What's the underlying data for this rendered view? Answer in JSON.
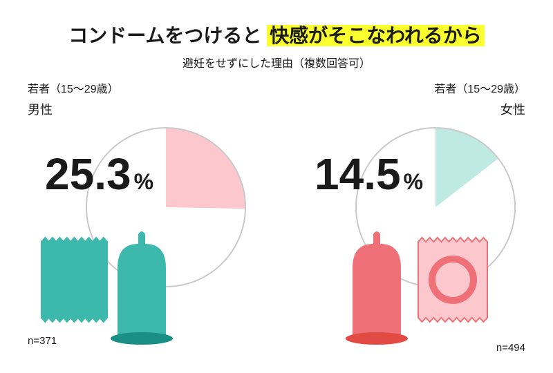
{
  "title_prefix": "コンドームをつけると",
  "title_highlight": "快感がそこなわれるから",
  "subtitle": "避妊をせずにした理由（複数回答可）",
  "left": {
    "group": "若者（15～29歳）",
    "gender": "男性",
    "percent_num": "25.3",
    "percent_sym": "%",
    "n_label": "n=371",
    "chart": {
      "type": "pie",
      "slice_percent": 25.3,
      "slice_color": "#fcc7cd",
      "ring_color": "#c9c9c9",
      "background": "#ffffff"
    },
    "icon_colors": {
      "packet_fill": "#3cb8ad",
      "packet_stroke": "#3cb8ad",
      "condom_fill": "#3cb8ad",
      "condom_base": "#1a8f86"
    }
  },
  "right": {
    "group": "若者（15～29歳）",
    "gender": "女性",
    "percent_num": "14.5",
    "percent_sym": "%",
    "n_label": "n=494",
    "chart": {
      "type": "pie",
      "slice_percent": 14.5,
      "slice_color": "#bfe9e3",
      "ring_color": "#c9c9c9",
      "background": "#ffffff"
    },
    "icon_colors": {
      "packet_fill": "#fcc7cd",
      "packet_stroke": "#f07077",
      "condom_fill": "#f07077",
      "condom_base": "#e24a44"
    }
  }
}
